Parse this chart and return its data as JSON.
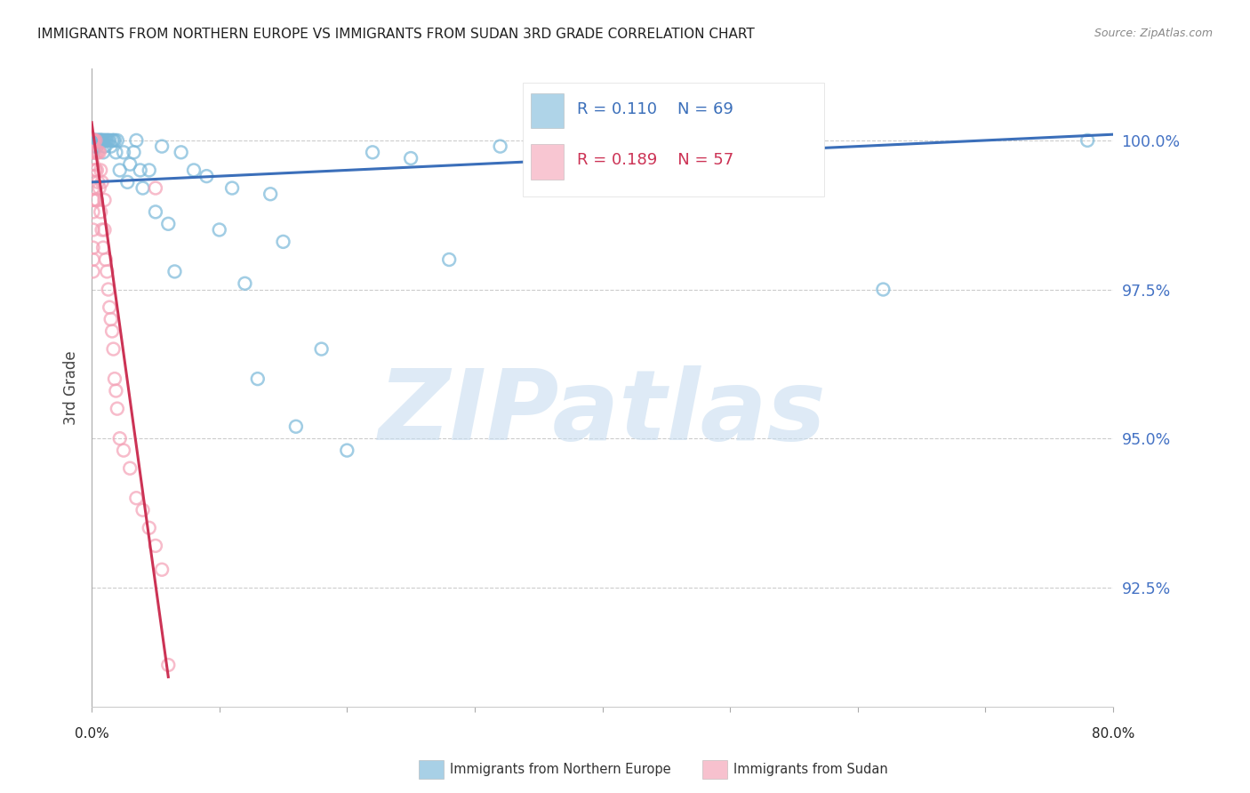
{
  "title": "IMMIGRANTS FROM NORTHERN EUROPE VS IMMIGRANTS FROM SUDAN 3RD GRADE CORRELATION CHART",
  "source": "Source: ZipAtlas.com",
  "ylabel": "3rd Grade",
  "yticks": [
    92.5,
    95.0,
    97.5,
    100.0
  ],
  "ytick_labels": [
    "92.5%",
    "95.0%",
    "97.5%",
    "100.0%"
  ],
  "legend_blue_r": "R = 0.110",
  "legend_blue_n": "N = 69",
  "legend_pink_r": "R = 0.189",
  "legend_pink_n": "N = 57",
  "legend_label_blue": "Immigrants from Northern Europe",
  "legend_label_pink": "Immigrants from Sudan",
  "blue_color": "#7ab8d9",
  "pink_color": "#f4a0b5",
  "trendline_blue_color": "#3b6fba",
  "trendline_pink_color": "#cc3355",
  "background_color": "#ffffff",
  "watermark_text": "ZIPatlas",
  "watermark_color": "#c8ddf0",
  "xlim": [
    0.0,
    0.8
  ],
  "ylim": [
    90.5,
    101.2
  ],
  "blue_x": [
    0.001,
    0.001,
    0.002,
    0.002,
    0.003,
    0.003,
    0.004,
    0.004,
    0.005,
    0.005,
    0.006,
    0.006,
    0.007,
    0.007,
    0.008,
    0.008,
    0.009,
    0.009,
    0.01,
    0.01,
    0.011,
    0.012,
    0.013,
    0.014,
    0.015,
    0.016,
    0.017,
    0.018,
    0.019,
    0.02,
    0.022,
    0.025,
    0.028,
    0.03,
    0.033,
    0.035,
    0.038,
    0.04,
    0.045,
    0.05,
    0.055,
    0.06,
    0.065,
    0.07,
    0.08,
    0.09,
    0.1,
    0.11,
    0.12,
    0.13,
    0.14,
    0.15,
    0.16,
    0.18,
    0.2,
    0.22,
    0.25,
    0.28,
    0.32,
    0.36,
    0.37,
    0.37,
    0.38,
    0.39,
    0.45,
    0.48,
    0.55,
    0.62,
    0.78
  ],
  "blue_y": [
    100.0,
    99.8,
    100.0,
    99.9,
    100.0,
    100.0,
    100.0,
    99.9,
    100.0,
    100.0,
    100.0,
    100.0,
    100.0,
    100.0,
    100.0,
    100.0,
    99.8,
    100.0,
    99.9,
    100.0,
    100.0,
    100.0,
    100.0,
    100.0,
    99.9,
    100.0,
    100.0,
    100.0,
    99.8,
    100.0,
    99.5,
    99.8,
    99.3,
    99.6,
    99.8,
    100.0,
    99.5,
    99.2,
    99.5,
    98.8,
    99.9,
    98.6,
    97.8,
    99.8,
    99.5,
    99.4,
    98.5,
    99.2,
    97.6,
    96.0,
    99.1,
    98.3,
    95.2,
    96.5,
    94.8,
    99.8,
    99.7,
    98.0,
    99.9,
    100.0,
    100.0,
    100.0,
    100.0,
    100.0,
    100.0,
    100.0,
    100.0,
    97.5,
    100.0
  ],
  "pink_x": [
    0.001,
    0.001,
    0.001,
    0.001,
    0.001,
    0.001,
    0.001,
    0.001,
    0.001,
    0.001,
    0.001,
    0.001,
    0.001,
    0.001,
    0.002,
    0.002,
    0.002,
    0.002,
    0.002,
    0.003,
    0.003,
    0.003,
    0.003,
    0.004,
    0.004,
    0.004,
    0.005,
    0.005,
    0.006,
    0.006,
    0.007,
    0.007,
    0.008,
    0.008,
    0.009,
    0.01,
    0.01,
    0.011,
    0.012,
    0.013,
    0.014,
    0.015,
    0.016,
    0.017,
    0.018,
    0.019,
    0.02,
    0.022,
    0.025,
    0.03,
    0.035,
    0.04,
    0.045,
    0.05,
    0.05,
    0.055,
    0.06
  ],
  "pink_y": [
    100.0,
    100.0,
    100.0,
    100.0,
    99.8,
    99.6,
    99.4,
    99.2,
    99.0,
    98.8,
    98.5,
    98.2,
    98.0,
    97.8,
    100.0,
    99.8,
    99.5,
    99.2,
    99.0,
    100.0,
    99.8,
    99.5,
    99.0,
    99.8,
    99.5,
    99.0,
    99.8,
    99.3,
    99.8,
    99.2,
    99.5,
    98.8,
    99.3,
    98.5,
    98.2,
    99.0,
    98.5,
    98.0,
    97.8,
    97.5,
    97.2,
    97.0,
    96.8,
    96.5,
    96.0,
    95.8,
    95.5,
    95.0,
    94.8,
    94.5,
    94.0,
    93.8,
    93.5,
    93.2,
    99.2,
    92.8,
    91.2
  ],
  "blue_trend_x": [
    0.0,
    0.8
  ],
  "blue_trend_y": [
    99.3,
    100.1
  ],
  "pink_trend_x": [
    0.0,
    0.06
  ],
  "pink_trend_y": [
    100.3,
    91.0
  ]
}
